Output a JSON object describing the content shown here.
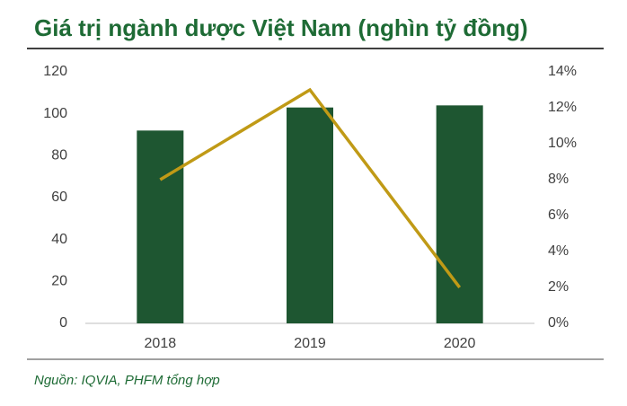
{
  "chart_data": {
    "type": "bar",
    "title": "Giá trị ngành dược Việt Nam (nghìn tỷ đồng)",
    "source": "Nguồn: IQVIA, PHFM tổng hợp",
    "categories": [
      "2018",
      "2019",
      "2020"
    ],
    "series": [
      {
        "type": "bar",
        "color": "#1e5631",
        "values": [
          92,
          103,
          104
        ]
      },
      {
        "type": "line",
        "axis": "y2",
        "color": "#c09a16",
        "values": [
          8,
          13,
          2
        ]
      }
    ],
    "ylim": [
      0,
      120
    ],
    "yticks": [
      0,
      20,
      40,
      60,
      80,
      100,
      120
    ],
    "y2lim": [
      0,
      14
    ],
    "y2ticks": [
      {
        "value": 0,
        "label": "0%"
      },
      {
        "value": 2,
        "label": "2%"
      },
      {
        "value": 4,
        "label": "4%"
      },
      {
        "value": 6,
        "label": "6%"
      },
      {
        "value": 8,
        "label": "8%"
      },
      {
        "value": 10,
        "label": "10%"
      },
      {
        "value": 12,
        "label": "12%"
      },
      {
        "value": 14,
        "label": "14%"
      }
    ],
    "grid": false
  }
}
